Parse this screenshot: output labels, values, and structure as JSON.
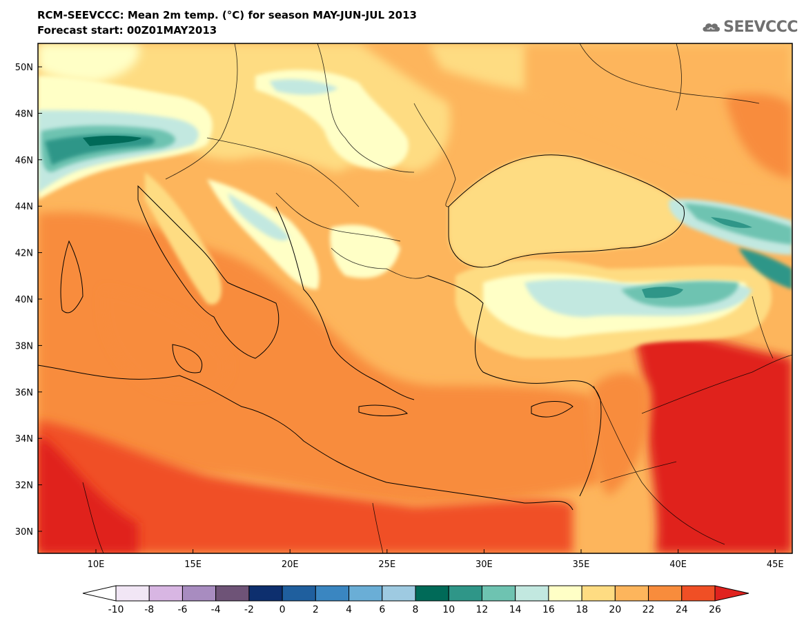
{
  "header": {
    "title": "RCM-SEEVCCC: Mean 2m temp. (°C) for season MAY-JUN-JUL 2013",
    "subtitle": "Forecast start: 00Z01MAY2013",
    "logo_text": "SEEVCCC"
  },
  "map": {
    "lat_labels": [
      "50N",
      "48N",
      "46N",
      "44N",
      "42N",
      "40N",
      "38N",
      "36N",
      "34N",
      "32N",
      "30N"
    ],
    "lon_labels": [
      "10E",
      "15E",
      "20E",
      "25E",
      "30E",
      "35E",
      "40E",
      "45E"
    ]
  },
  "colorbar": {
    "tick_labels": [
      "-10",
      "-8",
      "-6",
      "-4",
      "-2",
      "0",
      "2",
      "4",
      "6",
      "8",
      "10",
      "12",
      "14",
      "16",
      "18",
      "20",
      "22",
      "24",
      "26"
    ],
    "low_color": "#ffffff",
    "high_color": "#e0221e",
    "colors": [
      "#f1e6f5",
      "#d8b6e3",
      "#a88cc0",
      "#6e5377",
      "#0d2f6e",
      "#1f5f9e",
      "#3a86c1",
      "#6aaed6",
      "#9ecae1",
      "#006a58",
      "#2f9688",
      "#6ec3b1",
      "#c2e8e0",
      "#ffffc6",
      "#fedc82",
      "#fdb55c",
      "#f88c3c",
      "#f04f25"
    ]
  }
}
